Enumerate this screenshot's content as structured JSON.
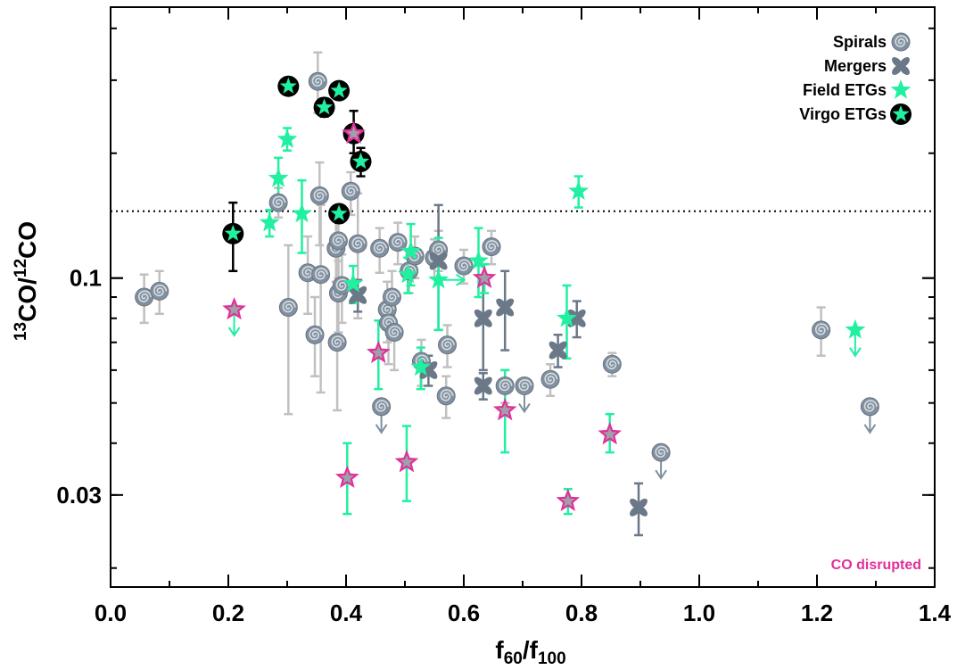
{
  "chart_data": {
    "type": "scatter",
    "xlabel": "f60/f100",
    "xlabel_parts": {
      "f1": "f",
      "sub1": "60",
      "sep": "/",
      "f2": "f",
      "sub2": "100"
    },
    "ylabel": "13CO/12CO",
    "ylabel_parts": {
      "sup1": "13",
      "co1": "CO/",
      "sup2": "12",
      "co2": "CO"
    },
    "xlim": [
      0.0,
      1.4
    ],
    "ylim": [
      0.018,
      0.45
    ],
    "yscale": "log",
    "x_ticks": [
      "0.0",
      "0.2",
      "0.4",
      "0.6",
      "0.8",
      "1.0",
      "1.2",
      "1.4"
    ],
    "y_ticks": [
      {
        "value": 0.1,
        "label": "0.1"
      },
      {
        "value": 0.03,
        "label": "0.03"
      }
    ],
    "reference_line": {
      "y": 0.145,
      "style": "dotted"
    },
    "annotation": {
      "text": "CO disrupted",
      "color": "#e0309a"
    },
    "legend": {
      "position": "top-right",
      "entries": [
        {
          "label": "Spirals",
          "marker": "spiral-icon"
        },
        {
          "label": "Mergers",
          "marker": "merger-icon"
        },
        {
          "label": "Field ETGs",
          "marker": "star-icon"
        },
        {
          "label": "Virgo ETGs",
          "marker": "virgo-star-icon"
        }
      ]
    },
    "colors": {
      "spiral": "#8090a0",
      "spiral_err": "#c0c0c0",
      "merger": "#6a7888",
      "field": "#20f0a0",
      "virgo_bg": "#000000",
      "disrupted": "#e0309a",
      "disrupted_fill": "#a0a0a8"
    },
    "series": [
      {
        "name": "Spirals",
        "points": [
          {
            "x": 0.057,
            "y": 0.09,
            "ylo": 0.078,
            "yhi": 0.102
          },
          {
            "x": 0.083,
            "y": 0.093,
            "ylo": 0.082,
            "yhi": 0.104
          },
          {
            "x": 0.285,
            "y": 0.152,
            "ylo": 0.14,
            "yhi": 0.165
          },
          {
            "x": 0.302,
            "y": 0.085,
            "ylo": 0.047,
            "yhi": 0.12
          },
          {
            "x": 0.335,
            "y": 0.103,
            "ylo": 0.082,
            "yhi": 0.126
          },
          {
            "x": 0.347,
            "y": 0.073,
            "ylo": 0.058,
            "yhi": 0.09
          },
          {
            "x": 0.352,
            "y": 0.298,
            "ylo": 0.25,
            "yhi": 0.35
          },
          {
            "x": 0.355,
            "y": 0.158,
            "ylo": 0.12,
            "yhi": 0.19
          },
          {
            "x": 0.357,
            "y": 0.102,
            "ylo": 0.053,
            "yhi": 0.15
          },
          {
            "x": 0.383,
            "y": 0.118,
            "ylo": 0.098,
            "yhi": 0.138
          },
          {
            "x": 0.385,
            "y": 0.07,
            "ylo": 0.048,
            "yhi": 0.092
          },
          {
            "x": 0.387,
            "y": 0.123,
            "ylo": 0.1,
            "yhi": 0.14
          },
          {
            "x": 0.387,
            "y": 0.092,
            "ylo": 0.074,
            "yhi": 0.11
          },
          {
            "x": 0.393,
            "y": 0.096,
            "ylo": 0.078,
            "yhi": 0.114
          },
          {
            "x": 0.408,
            "y": 0.162,
            "ylo": 0.142,
            "yhi": 0.18
          },
          {
            "x": 0.42,
            "y": 0.121,
            "ylo": 0.08,
            "yhi": 0.16
          },
          {
            "x": 0.457,
            "y": 0.118,
            "ylo": 0.103,
            "yhi": 0.132
          },
          {
            "x": 0.46,
            "y": 0.049,
            "upper_limit": true
          },
          {
            "x": 0.47,
            "y": 0.084,
            "ylo": 0.07,
            "yhi": 0.098
          },
          {
            "x": 0.472,
            "y": 0.078,
            "ylo": 0.062,
            "yhi": 0.093
          },
          {
            "x": 0.478,
            "y": 0.09,
            "ylo": 0.076,
            "yhi": 0.104
          },
          {
            "x": 0.482,
            "y": 0.074,
            "ylo": 0.06,
            "yhi": 0.088
          },
          {
            "x": 0.488,
            "y": 0.122,
            "ylo": 0.108,
            "yhi": 0.136
          },
          {
            "x": 0.507,
            "y": 0.104,
            "ylo": 0.092,
            "yhi": 0.116
          },
          {
            "x": 0.517,
            "y": 0.113,
            "ylo": 0.1,
            "yhi": 0.126
          },
          {
            "x": 0.528,
            "y": 0.063,
            "ylo": 0.055,
            "yhi": 0.071
          },
          {
            "x": 0.55,
            "y": 0.112,
            "ylo": 0.1,
            "yhi": 0.124
          },
          {
            "x": 0.557,
            "y": 0.117,
            "ylo": 0.104,
            "yhi": 0.13
          },
          {
            "x": 0.57,
            "y": 0.052,
            "ylo": 0.046,
            "yhi": 0.058
          },
          {
            "x": 0.572,
            "y": 0.069,
            "ylo": 0.061,
            "yhi": 0.077
          },
          {
            "x": 0.6,
            "y": 0.107,
            "ylo": 0.097,
            "yhi": 0.117
          },
          {
            "x": 0.647,
            "y": 0.119,
            "ylo": 0.108,
            "yhi": 0.13
          },
          {
            "x": 0.67,
            "y": 0.055,
            "ylo": 0.05,
            "yhi": 0.06
          },
          {
            "x": 0.703,
            "y": 0.055,
            "upper_limit": true
          },
          {
            "x": 0.747,
            "y": 0.057,
            "ylo": 0.052,
            "yhi": 0.062
          },
          {
            "x": 0.852,
            "y": 0.062,
            "ylo": 0.058,
            "yhi": 0.066
          },
          {
            "x": 0.935,
            "y": 0.038,
            "upper_limit": true
          },
          {
            "x": 1.207,
            "y": 0.075,
            "ylo": 0.065,
            "yhi": 0.085
          },
          {
            "x": 1.29,
            "y": 0.049,
            "upper_limit": true
          }
        ]
      },
      {
        "name": "Mergers",
        "points": [
          {
            "x": 0.42,
            "y": 0.091,
            "ylo": 0.083,
            "yhi": 0.099
          },
          {
            "x": 0.54,
            "y": 0.06,
            "ylo": 0.055,
            "yhi": 0.065
          },
          {
            "x": 0.557,
            "y": 0.11,
            "ylo": 0.075,
            "yhi": 0.15
          },
          {
            "x": 0.633,
            "y": 0.055,
            "ylo": 0.051,
            "yhi": 0.059
          },
          {
            "x": 0.633,
            "y": 0.08,
            "ylo": 0.06,
            "yhi": 0.1
          },
          {
            "x": 0.67,
            "y": 0.085,
            "ylo": 0.067,
            "yhi": 0.104
          },
          {
            "x": 0.76,
            "y": 0.067,
            "ylo": 0.061,
            "yhi": 0.073
          },
          {
            "x": 0.792,
            "y": 0.08,
            "ylo": 0.072,
            "yhi": 0.088
          },
          {
            "x": 0.897,
            "y": 0.028,
            "ylo": 0.024,
            "yhi": 0.032
          }
        ]
      },
      {
        "name": "Field ETGs",
        "points": [
          {
            "x": 0.21,
            "y": 0.084,
            "upper_limit": true
          },
          {
            "x": 0.27,
            "y": 0.136,
            "ylo": 0.126,
            "yhi": 0.146
          },
          {
            "x": 0.285,
            "y": 0.174,
            "ylo": 0.155,
            "yhi": 0.195
          },
          {
            "x": 0.3,
            "y": 0.216,
            "ylo": 0.203,
            "yhi": 0.23
          },
          {
            "x": 0.325,
            "y": 0.143,
            "ylo": 0.115,
            "yhi": 0.172
          },
          {
            "x": 0.412,
            "y": 0.097,
            "ylo": 0.087,
            "yhi": 0.107
          },
          {
            "x": 0.505,
            "y": 0.102,
            "ylo": 0.092,
            "yhi": 0.112
          },
          {
            "x": 0.51,
            "y": 0.116,
            "ylo": 0.096,
            "yhi": 0.135
          },
          {
            "x": 0.527,
            "y": 0.061,
            "ylo": 0.054,
            "yhi": 0.068
          },
          {
            "x": 0.557,
            "y": 0.099,
            "lower_limit": true,
            "ylo": 0.075,
            "yhi": 0.125
          },
          {
            "x": 0.625,
            "y": 0.11,
            "ylo": 0.09,
            "yhi": 0.132
          },
          {
            "x": 0.775,
            "y": 0.08,
            "ylo": 0.064,
            "yhi": 0.096
          },
          {
            "x": 0.795,
            "y": 0.162,
            "ylo": 0.148,
            "yhi": 0.176
          },
          {
            "x": 1.265,
            "y": 0.075,
            "upper_limit": true
          }
        ]
      },
      {
        "name": "Virgo ETGs",
        "points": [
          {
            "x": 0.208,
            "y": 0.128,
            "ylo": 0.104,
            "yhi": 0.152
          },
          {
            "x": 0.302,
            "y": 0.29,
            "ylo": 0.278,
            "yhi": 0.302
          },
          {
            "x": 0.363,
            "y": 0.258,
            "ylo": 0.245,
            "yhi": 0.271
          },
          {
            "x": 0.388,
            "y": 0.283,
            "ylo": 0.27,
            "yhi": 0.296
          },
          {
            "x": 0.388,
            "y": 0.143,
            "ylo": 0.136,
            "yhi": 0.15
          },
          {
            "x": 0.413,
            "y": 0.223,
            "ylo": 0.2,
            "yhi": 0.253
          },
          {
            "x": 0.425,
            "y": 0.191,
            "ylo": 0.176,
            "yhi": 0.206
          }
        ]
      },
      {
        "name": "CO disrupted",
        "points": [
          {
            "x": 0.21,
            "y": 0.084
          },
          {
            "x": 0.402,
            "y": 0.033,
            "ylo": 0.027,
            "yhi": 0.04
          },
          {
            "x": 0.413,
            "y": 0.223
          },
          {
            "x": 0.455,
            "y": 0.066,
            "ylo": 0.054,
            "yhi": 0.079
          },
          {
            "x": 0.503,
            "y": 0.036,
            "ylo": 0.029,
            "yhi": 0.044
          },
          {
            "x": 0.635,
            "y": 0.1,
            "ylo": 0.092,
            "yhi": 0.108
          },
          {
            "x": 0.67,
            "y": 0.048,
            "ylo": 0.038,
            "yhi": 0.06
          },
          {
            "x": 0.777,
            "y": 0.029,
            "ylo": 0.027,
            "yhi": 0.031
          },
          {
            "x": 0.848,
            "y": 0.042,
            "ylo": 0.038,
            "yhi": 0.047
          }
        ]
      }
    ]
  }
}
